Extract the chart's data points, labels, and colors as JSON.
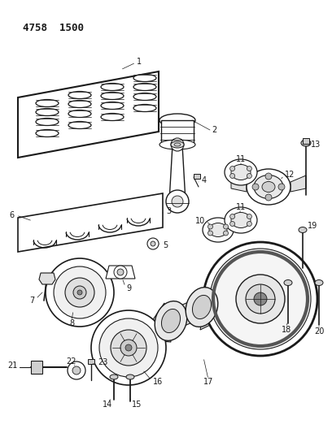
{
  "background_color": "#ffffff",
  "title_text": "4758  1500",
  "line_color": "#1a1a1a",
  "label_fontsize": 7.0
}
